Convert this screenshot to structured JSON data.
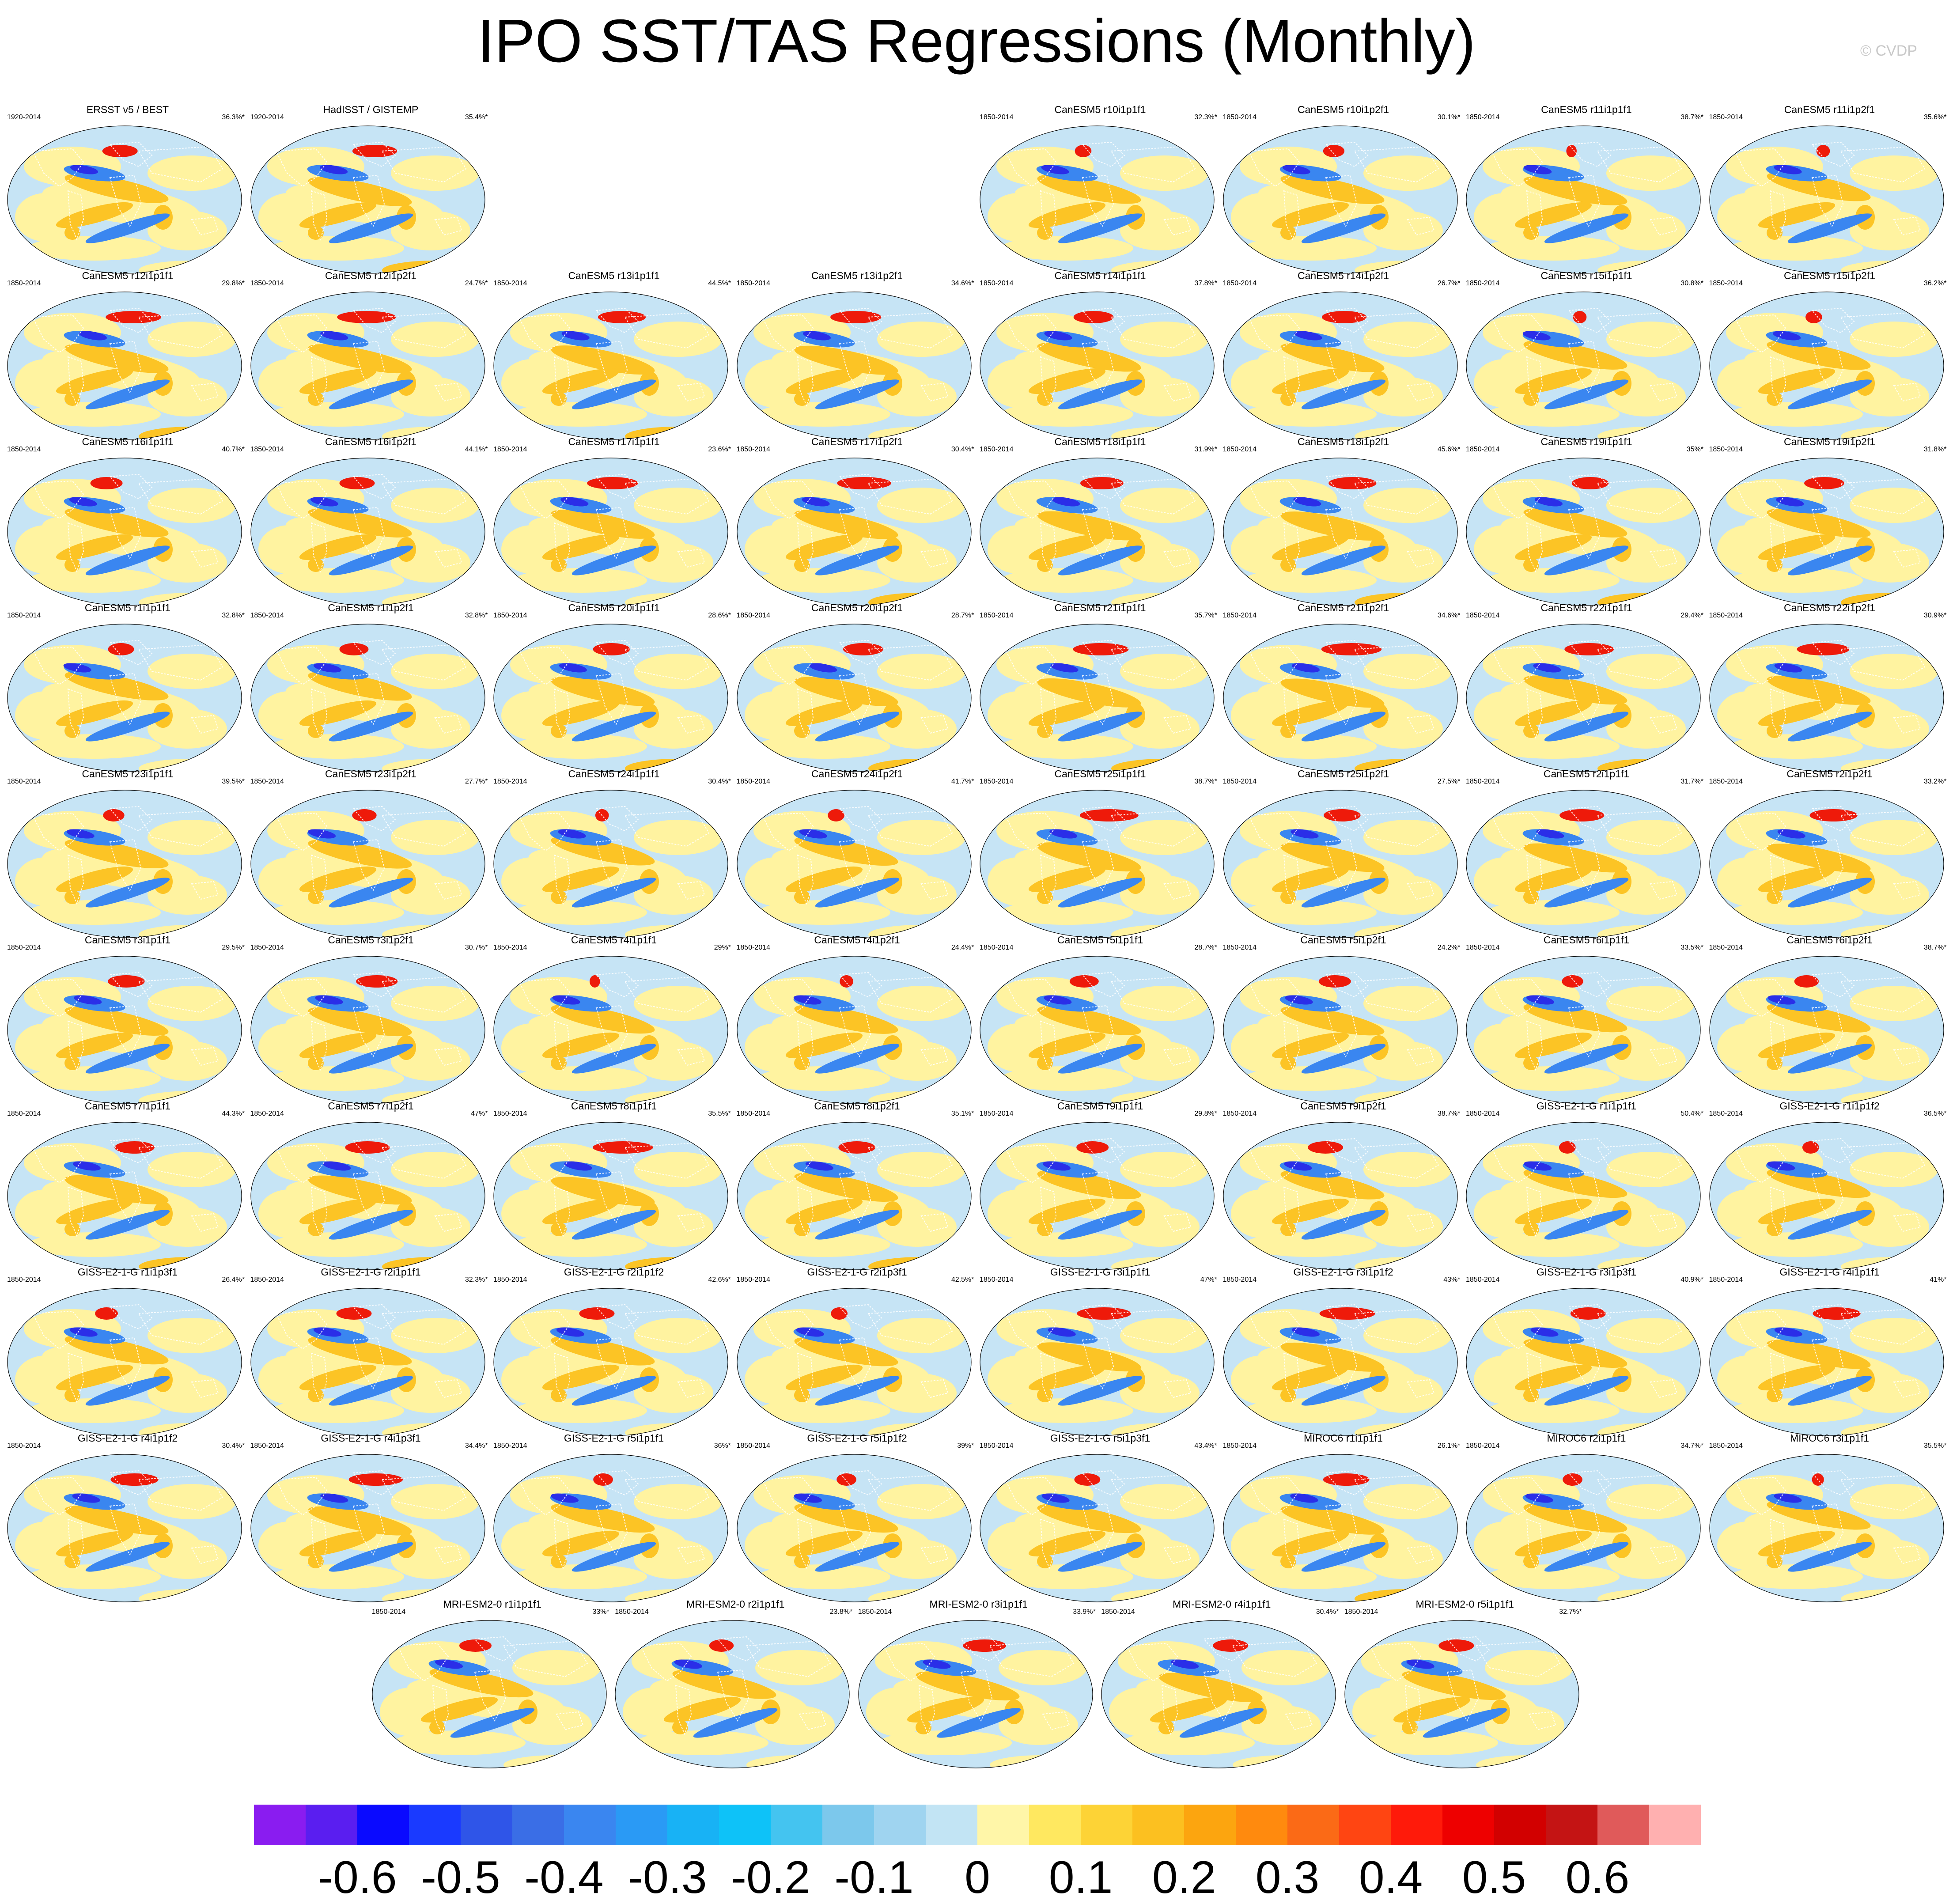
{
  "title": "IPO SST/TAS Regressions (Monthly)",
  "copyright": "© CVDP",
  "rows": [
    [
      {
        "title": "ERSST v5 / BEST",
        "years": "1920-2014",
        "pct": "36.3%*",
        "col": 0
      },
      {
        "title": "HadISST / GISTEMP",
        "years": "1920-2014",
        "pct": "35.4%*",
        "col": 1
      },
      {
        "title": "CanESM5 r10i1p1f1",
        "years": "1850-2014",
        "pct": "32.3%*",
        "col": 4
      },
      {
        "title": "CanESM5 r10i1p2f1",
        "years": "1850-2014",
        "pct": "30.1%*",
        "col": 5
      },
      {
        "title": "CanESM5 r11i1p1f1",
        "years": "1850-2014",
        "pct": "38.7%*",
        "col": 6
      },
      {
        "title": "CanESM5 r11i1p2f1",
        "years": "1850-2014",
        "pct": "35.6%*",
        "col": 7
      }
    ],
    [
      {
        "title": "CanESM5 r12i1p1f1",
        "years": "1850-2014",
        "pct": "29.8%*",
        "col": 0
      },
      {
        "title": "CanESM5 r12i1p2f1",
        "years": "1850-2014",
        "pct": "24.7%*",
        "col": 1
      },
      {
        "title": "CanESM5 r13i1p1f1",
        "years": "1850-2014",
        "pct": "44.5%*",
        "col": 2
      },
      {
        "title": "CanESM5 r13i1p2f1",
        "years": "1850-2014",
        "pct": "34.6%*",
        "col": 3
      },
      {
        "title": "CanESM5 r14i1p1f1",
        "years": "1850-2014",
        "pct": "37.8%*",
        "col": 4
      },
      {
        "title": "CanESM5 r14i1p2f1",
        "years": "1850-2014",
        "pct": "26.7%*",
        "col": 5
      },
      {
        "title": "CanESM5 r15i1p1f1",
        "years": "1850-2014",
        "pct": "30.8%*",
        "col": 6
      },
      {
        "title": "CanESM5 r15i1p2f1",
        "years": "1850-2014",
        "pct": "36.2%*",
        "col": 7
      }
    ],
    [
      {
        "title": "CanESM5 r16i1p1f1",
        "years": "1850-2014",
        "pct": "40.7%*",
        "col": 0
      },
      {
        "title": "CanESM5 r16i1p2f1",
        "years": "1850-2014",
        "pct": "44.1%*",
        "col": 1
      },
      {
        "title": "CanESM5 r17i1p1f1",
        "years": "1850-2014",
        "pct": "23.6%*",
        "col": 2
      },
      {
        "title": "CanESM5 r17i1p2f1",
        "years": "1850-2014",
        "pct": "30.4%*",
        "col": 3
      },
      {
        "title": "CanESM5 r18i1p1f1",
        "years": "1850-2014",
        "pct": "31.9%*",
        "col": 4
      },
      {
        "title": "CanESM5 r18i1p2f1",
        "years": "1850-2014",
        "pct": "45.6%*",
        "col": 5
      },
      {
        "title": "CanESM5 r19i1p1f1",
        "years": "1850-2014",
        "pct": "35%*",
        "col": 6
      },
      {
        "title": "CanESM5 r19i1p2f1",
        "years": "1850-2014",
        "pct": "31.8%*",
        "col": 7
      }
    ],
    [
      {
        "title": "CanESM5 r1i1p1f1",
        "years": "1850-2014",
        "pct": "32.8%*",
        "col": 0
      },
      {
        "title": "CanESM5 r1i1p2f1",
        "years": "1850-2014",
        "pct": "32.8%*",
        "col": 1
      },
      {
        "title": "CanESM5 r20i1p1f1",
        "years": "1850-2014",
        "pct": "28.6%*",
        "col": 2
      },
      {
        "title": "CanESM5 r20i1p2f1",
        "years": "1850-2014",
        "pct": "28.7%*",
        "col": 3
      },
      {
        "title": "CanESM5 r21i1p1f1",
        "years": "1850-2014",
        "pct": "35.7%*",
        "col": 4
      },
      {
        "title": "CanESM5 r21i1p2f1",
        "years": "1850-2014",
        "pct": "34.6%*",
        "col": 5
      },
      {
        "title": "CanESM5 r22i1p1f1",
        "years": "1850-2014",
        "pct": "29.4%*",
        "col": 6
      },
      {
        "title": "CanESM5 r22i1p2f1",
        "years": "1850-2014",
        "pct": "30.9%*",
        "col": 7
      }
    ],
    [
      {
        "title": "CanESM5 r23i1p1f1",
        "years": "1850-2014",
        "pct": "39.5%*",
        "col": 0
      },
      {
        "title": "CanESM5 r23i1p2f1",
        "years": "1850-2014",
        "pct": "27.7%*",
        "col": 1
      },
      {
        "title": "CanESM5 r24i1p1f1",
        "years": "1850-2014",
        "pct": "30.4%*",
        "col": 2
      },
      {
        "title": "CanESM5 r24i1p2f1",
        "years": "1850-2014",
        "pct": "41.7%*",
        "col": 3
      },
      {
        "title": "CanESM5 r25i1p1f1",
        "years": "1850-2014",
        "pct": "38.7%*",
        "col": 4
      },
      {
        "title": "CanESM5 r25i1p2f1",
        "years": "1850-2014",
        "pct": "27.5%*",
        "col": 5
      },
      {
        "title": "CanESM5 r2i1p1f1",
        "years": "1850-2014",
        "pct": "31.7%*",
        "col": 6
      },
      {
        "title": "CanESM5 r2i1p2f1",
        "years": "1850-2014",
        "pct": "33.2%*",
        "col": 7
      }
    ],
    [
      {
        "title": "CanESM5 r3i1p1f1",
        "years": "1850-2014",
        "pct": "29.5%*",
        "col": 0
      },
      {
        "title": "CanESM5 r3i1p2f1",
        "years": "1850-2014",
        "pct": "30.7%*",
        "col": 1
      },
      {
        "title": "CanESM5 r4i1p1f1",
        "years": "1850-2014",
        "pct": "29%*",
        "col": 2
      },
      {
        "title": "CanESM5 r4i1p2f1",
        "years": "1850-2014",
        "pct": "24.4%*",
        "col": 3
      },
      {
        "title": "CanESM5 r5i1p1f1",
        "years": "1850-2014",
        "pct": "28.7%*",
        "col": 4
      },
      {
        "title": "CanESM5 r5i1p2f1",
        "years": "1850-2014",
        "pct": "24.2%*",
        "col": 5
      },
      {
        "title": "CanESM5 r6i1p1f1",
        "years": "1850-2014",
        "pct": "33.5%*",
        "col": 6
      },
      {
        "title": "CanESM5 r6i1p2f1",
        "years": "1850-2014",
        "pct": "38.7%*",
        "col": 7
      }
    ],
    [
      {
        "title": "CanESM5 r7i1p1f1",
        "years": "1850-2014",
        "pct": "44.3%*",
        "col": 0
      },
      {
        "title": "CanESM5 r7i1p2f1",
        "years": "1850-2014",
        "pct": "47%*",
        "col": 1
      },
      {
        "title": "CanESM5 r8i1p1f1",
        "years": "1850-2014",
        "pct": "35.5%*",
        "col": 2
      },
      {
        "title": "CanESM5 r8i1p2f1",
        "years": "1850-2014",
        "pct": "35.1%*",
        "col": 3
      },
      {
        "title": "CanESM5 r9i1p1f1",
        "years": "1850-2014",
        "pct": "29.8%*",
        "col": 4
      },
      {
        "title": "CanESM5 r9i1p2f1",
        "years": "1850-2014",
        "pct": "38.7%*",
        "col": 5
      },
      {
        "title": "GISS-E2-1-G r1i1p1f1",
        "years": "1850-2014",
        "pct": "50.4%*",
        "col": 6
      },
      {
        "title": "GISS-E2-1-G r1i1p1f2",
        "years": "1850-2014",
        "pct": "36.5%*",
        "col": 7
      }
    ],
    [
      {
        "title": "GISS-E2-1-G r1i1p3f1",
        "years": "1850-2014",
        "pct": "26.4%*",
        "col": 0
      },
      {
        "title": "GISS-E2-1-G r2i1p1f1",
        "years": "1850-2014",
        "pct": "32.3%*",
        "col": 1
      },
      {
        "title": "GISS-E2-1-G r2i1p1f2",
        "years": "1850-2014",
        "pct": "42.6%*",
        "col": 2
      },
      {
        "title": "GISS-E2-1-G r2i1p3f1",
        "years": "1850-2014",
        "pct": "42.5%*",
        "col": 3
      },
      {
        "title": "GISS-E2-1-G r3i1p1f1",
        "years": "1850-2014",
        "pct": "47%*",
        "col": 4
      },
      {
        "title": "GISS-E2-1-G r3i1p1f2",
        "years": "1850-2014",
        "pct": "43%*",
        "col": 5
      },
      {
        "title": "GISS-E2-1-G r3i1p3f1",
        "years": "1850-2014",
        "pct": "40.9%*",
        "col": 6
      },
      {
        "title": "GISS-E2-1-G r4i1p1f1",
        "years": "1850-2014",
        "pct": "41%*",
        "col": 7
      }
    ],
    [
      {
        "title": "GISS-E2-1-G r4i1p1f2",
        "years": "1850-2014",
        "pct": "30.4%*",
        "col": 0
      },
      {
        "title": "GISS-E2-1-G r4i1p3f1",
        "years": "1850-2014",
        "pct": "34.4%*",
        "col": 1
      },
      {
        "title": "GISS-E2-1-G r5i1p1f1",
        "years": "1850-2014",
        "pct": "36%*",
        "col": 2
      },
      {
        "title": "GISS-E2-1-G r5i1p1f2",
        "years": "1850-2014",
        "pct": "39%*",
        "col": 3
      },
      {
        "title": "GISS-E2-1-G r5i1p3f1",
        "years": "1850-2014",
        "pct": "43.4%*",
        "col": 4
      },
      {
        "title": "MIROC6 r1i1p1f1",
        "years": "1850-2014",
        "pct": "26.1%*",
        "col": 5
      },
      {
        "title": "MIROC6 r2i1p1f1",
        "years": "1850-2014",
        "pct": "34.7%*",
        "col": 6
      },
      {
        "title": "MIROC6 r3i1p1f1",
        "years": "1850-2014",
        "pct": "35.5%*",
        "col": 7
      }
    ],
    [
      {
        "title": "MRI-ESM2-0 r1i1p1f1",
        "years": "1850-2014",
        "pct": "33%*",
        "col": 1.5
      },
      {
        "title": "MRI-ESM2-0 r2i1p1f1",
        "years": "1850-2014",
        "pct": "23.8%*",
        "col": 2.5
      },
      {
        "title": "MRI-ESM2-0 r3i1p1f1",
        "years": "1850-2014",
        "pct": "33.9%*",
        "col": 3.5
      },
      {
        "title": "MRI-ESM2-0 r4i1p1f1",
        "years": "1850-2014",
        "pct": "30.4%*",
        "col": 4.5
      },
      {
        "title": "MRI-ESM2-0 r5i1p1f1",
        "years": "1850-2014",
        "pct": "32.7%*",
        "col": 5.5
      }
    ]
  ],
  "colorbar": {
    "colors": [
      "#8a1cf0",
      "#5a1ef0",
      "#0a0aff",
      "#1a3aff",
      "#2f55e8",
      "#3a6ee6",
      "#3a86f0",
      "#2a9af5",
      "#18b2f5",
      "#0ec2f8",
      "#44c4f0",
      "#7cc8ec",
      "#9fd4f0",
      "#c2e4f4",
      "#fff6a8",
      "#ffe860",
      "#fdd336",
      "#fcc020",
      "#fca50f",
      "#ff8a0e",
      "#fb6a16",
      "#ff4512",
      "#ff1a0a",
      "#ee0000",
      "#d20000",
      "#c41414",
      "#e05a5a",
      "#ffb0b0"
    ],
    "labels": [
      "-0.6",
      "-0.5",
      "-0.4",
      "-0.3",
      "-0.2",
      "-0.1",
      "0",
      "0.1",
      "0.2",
      "0.3",
      "0.4",
      "0.5",
      "0.6"
    ],
    "label_values": [
      -0.6,
      -0.5,
      -0.4,
      -0.3,
      -0.2,
      -0.1,
      0,
      0.1,
      0.2,
      0.3,
      0.4,
      0.5,
      0.6
    ],
    "min": -0.7,
    "max": 0.7
  },
  "map_colors": {
    "background": "#c6e4f5",
    "neutral_warm": "#fff3a0",
    "warm": "#fcc425",
    "cool": "#3a86f0",
    "cold": "#2a2ee8",
    "hot": "#ee1a0a",
    "land_outline": "#ffffff"
  }
}
